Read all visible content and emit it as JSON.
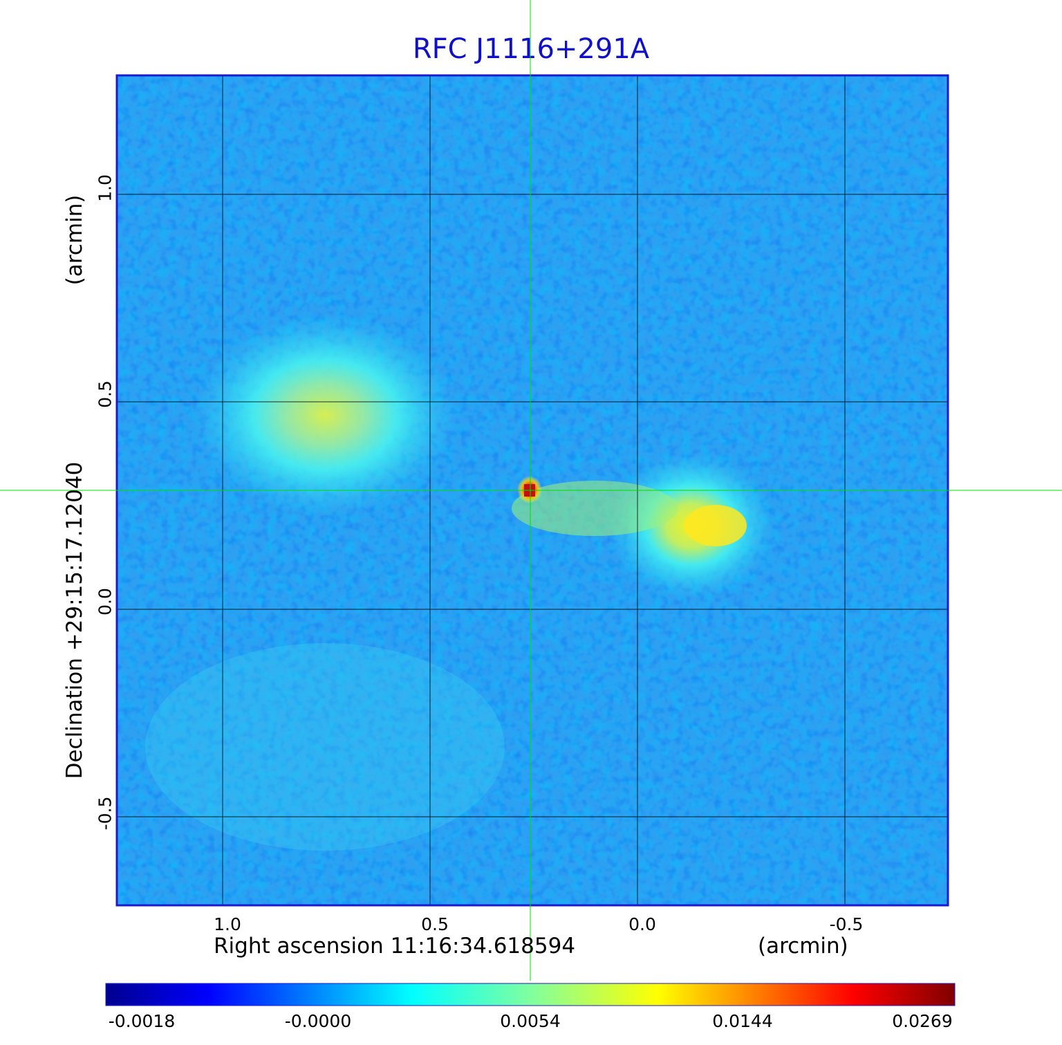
{
  "title": "RFC J1116+291A",
  "x_axis": {
    "label": "Right ascension  11:16:34.618594",
    "unit": "(arcmin)",
    "ticks": [
      "1.0",
      "0.5",
      "0.0",
      "-0.5"
    ]
  },
  "y_axis": {
    "label": "Declination  +29:15:17.12040",
    "unit": "(arcmin)",
    "ticks": [
      "1.0",
      "0.5",
      "0.0",
      "-0.5"
    ]
  },
  "colorbar": {
    "ticks": [
      "-0.0018",
      "-0.0000",
      "0.0054",
      "0.0144",
      "0.0269"
    ],
    "colormap": [
      "#00008f",
      "#0000ff",
      "#00ffff",
      "#ffff00",
      "#ff0000",
      "#800000"
    ]
  },
  "colors": {
    "title": "#1010cc",
    "frame": "#1a1ad0",
    "crosshair": "#00e000",
    "grid": "#000000"
  }
}
